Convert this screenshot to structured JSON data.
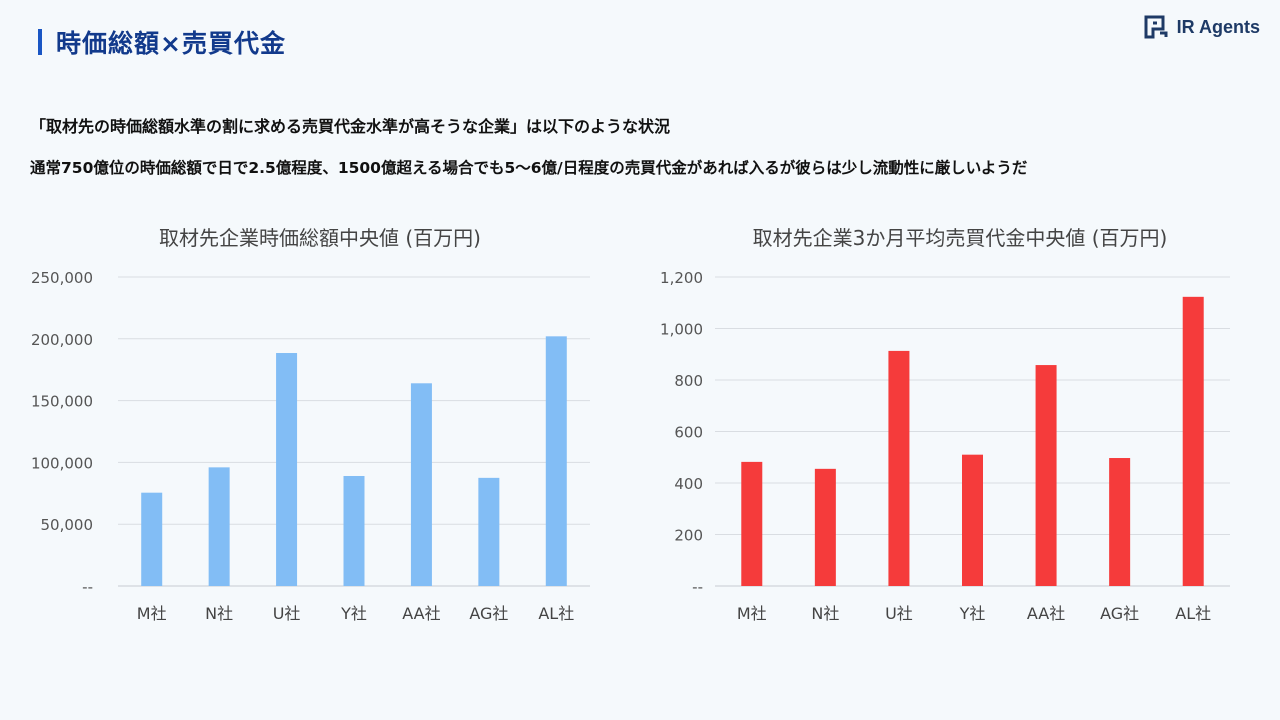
{
  "header": {
    "title": "時価総額×売買代金",
    "logo_text": "IR Agents"
  },
  "description": {
    "line1": "「取材先の時価総額水準の割に求める売買代金水準が高そうな企業」は以下のような状況",
    "line2": "通常750億位の時価総額で日で2.5億程度、1500億超える場合でも5～6億/日程度の売買代金があれば入るが彼らは少し流動性に厳しいようだ"
  },
  "colors": {
    "accent": "#1a56c4",
    "bar_left": "#82bdf5",
    "bar_right": "#f53b3b",
    "grid": "#d9dde2"
  },
  "chart_data": [
    {
      "type": "bar",
      "title": "取材先企業時価総額中央値 (百万円)",
      "categories": [
        "M社",
        "N社",
        "U社",
        "Y社",
        "AA社",
        "AG社",
        "AL社"
      ],
      "values": [
        75500,
        96000,
        188500,
        89000,
        164000,
        87500,
        202000
      ],
      "ylim": [
        0,
        250000
      ],
      "yticks": [
        "--",
        "50,000",
        "100,000",
        "150,000",
        "200,000",
        "250,000"
      ],
      "grid": true
    },
    {
      "type": "bar",
      "title": "取材先企業3か月平均売買代金中央値 (百万円)",
      "categories": [
        "M社",
        "N社",
        "U社",
        "Y社",
        "AA社",
        "AG社",
        "AL社"
      ],
      "values": [
        482,
        455,
        913,
        510,
        858,
        497,
        1123
      ],
      "ylim": [
        0,
        1200
      ],
      "yticks": [
        "--",
        "200",
        "400",
        "600",
        "800",
        "1,000",
        "1,200"
      ],
      "grid": true
    }
  ]
}
